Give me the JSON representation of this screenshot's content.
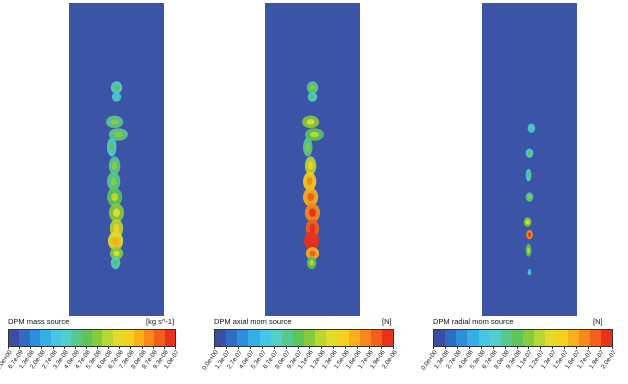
{
  "panels": [
    {
      "id": "mass",
      "title": "DPM mass source",
      "unit": "[kg s^-1]",
      "ticks": [
        "0.0e+00",
        "6.7e-09",
        "1.3e-08",
        "2.0e-08",
        "2.7e-08",
        "3.3e-08",
        "4.0e-08",
        "4.7e-08",
        "5.3e-08",
        "6.0e-08",
        "6.7e-08",
        "7.3e-08",
        "8.0e-08",
        "8.7e-08",
        "9.3e-08",
        "1.0e-07"
      ]
    },
    {
      "id": "axial",
      "title": "DPM axial mom source",
      "unit": "[N]",
      "ticks": [
        "0.0e+00",
        "1.3e-07",
        "2.7e-07",
        "4.0e-07",
        "5.3e-07",
        "6.7e-07",
        "8.0e-07",
        "9.3e-07",
        "1.1e-06",
        "1.2e-06",
        "1.3e-06",
        "1.5e-06",
        "1.6e-06",
        "1.7e-06",
        "1.9e-06",
        "2.0e-06"
      ]
    },
    {
      "id": "radial",
      "title": "DPM radial mom source",
      "unit": "[N]",
      "ticks": [
        "0.0e+00",
        "1.3e-08",
        "2.7e-08",
        "4.0e-08",
        "5.3e-08",
        "6.7e-08",
        "8.0e-08",
        "9.3e-08",
        "1.1e-07",
        "1.2e-07",
        "1.3e-07",
        "1.5e-07",
        "1.6e-07",
        "1.7e-07",
        "1.9e-07",
        "2.0e-07"
      ]
    }
  ],
  "colormap": [
    "#3a4ea6",
    "#2f6cc4",
    "#2e8ede",
    "#35aee8",
    "#45c6e6",
    "#52cfc8",
    "#58c98e",
    "#5cc45a",
    "#85cc3c",
    "#b8d830",
    "#e1dc2a",
    "#f6cf1f",
    "#fbb01a",
    "#fa8a18",
    "#f4601a",
    "#e8321e"
  ],
  "background_color": "#3c54a5"
}
